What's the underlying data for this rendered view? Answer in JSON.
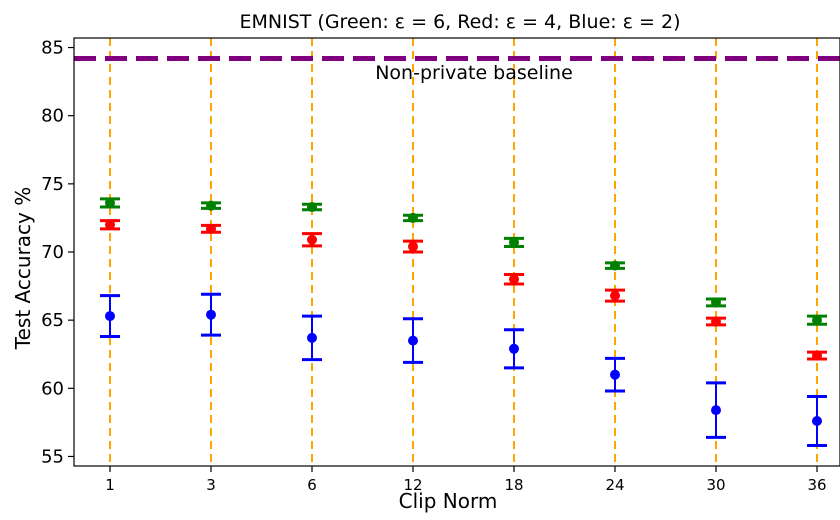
{
  "chart_data": {
    "type": "scatter",
    "title": "EMNIST (Green: ε = 6, Red: ε = 4, Blue: ε = 2)",
    "xlabel": "Clip Norm",
    "ylabel": "Test Accuracy %",
    "categories": [
      "1",
      "3",
      "6",
      "12",
      "18",
      "24",
      "30",
      "36"
    ],
    "ylim": [
      54.3,
      85.7
    ],
    "yticks": [
      55,
      60,
      65,
      70,
      75,
      80,
      85
    ],
    "grid": false,
    "baseline": {
      "value": 84.2,
      "label": "Non-private baseline",
      "color": "#800080"
    },
    "vline_color": "#FFA500",
    "series": [
      {
        "color": "#008000",
        "values": [
          73.6,
          73.4,
          73.3,
          72.5,
          70.7,
          69.0,
          66.3,
          65.0
        ],
        "err": [
          0.3,
          0.2,
          0.2,
          0.2,
          0.3,
          0.2,
          0.25,
          0.3
        ]
      },
      {
        "color": "#FF0000",
        "values": [
          72.0,
          71.7,
          70.9,
          70.4,
          68.0,
          66.8,
          64.9,
          62.4
        ],
        "err": [
          0.3,
          0.25,
          0.45,
          0.4,
          0.35,
          0.4,
          0.25,
          0.25
        ]
      },
      {
        "color": "#0000FF",
        "values": [
          65.3,
          65.4,
          63.7,
          63.5,
          62.9,
          61.0,
          58.4,
          57.6
        ],
        "err": [
          1.5,
          1.5,
          1.6,
          1.6,
          1.4,
          1.2,
          2.0,
          1.8
        ]
      }
    ]
  }
}
